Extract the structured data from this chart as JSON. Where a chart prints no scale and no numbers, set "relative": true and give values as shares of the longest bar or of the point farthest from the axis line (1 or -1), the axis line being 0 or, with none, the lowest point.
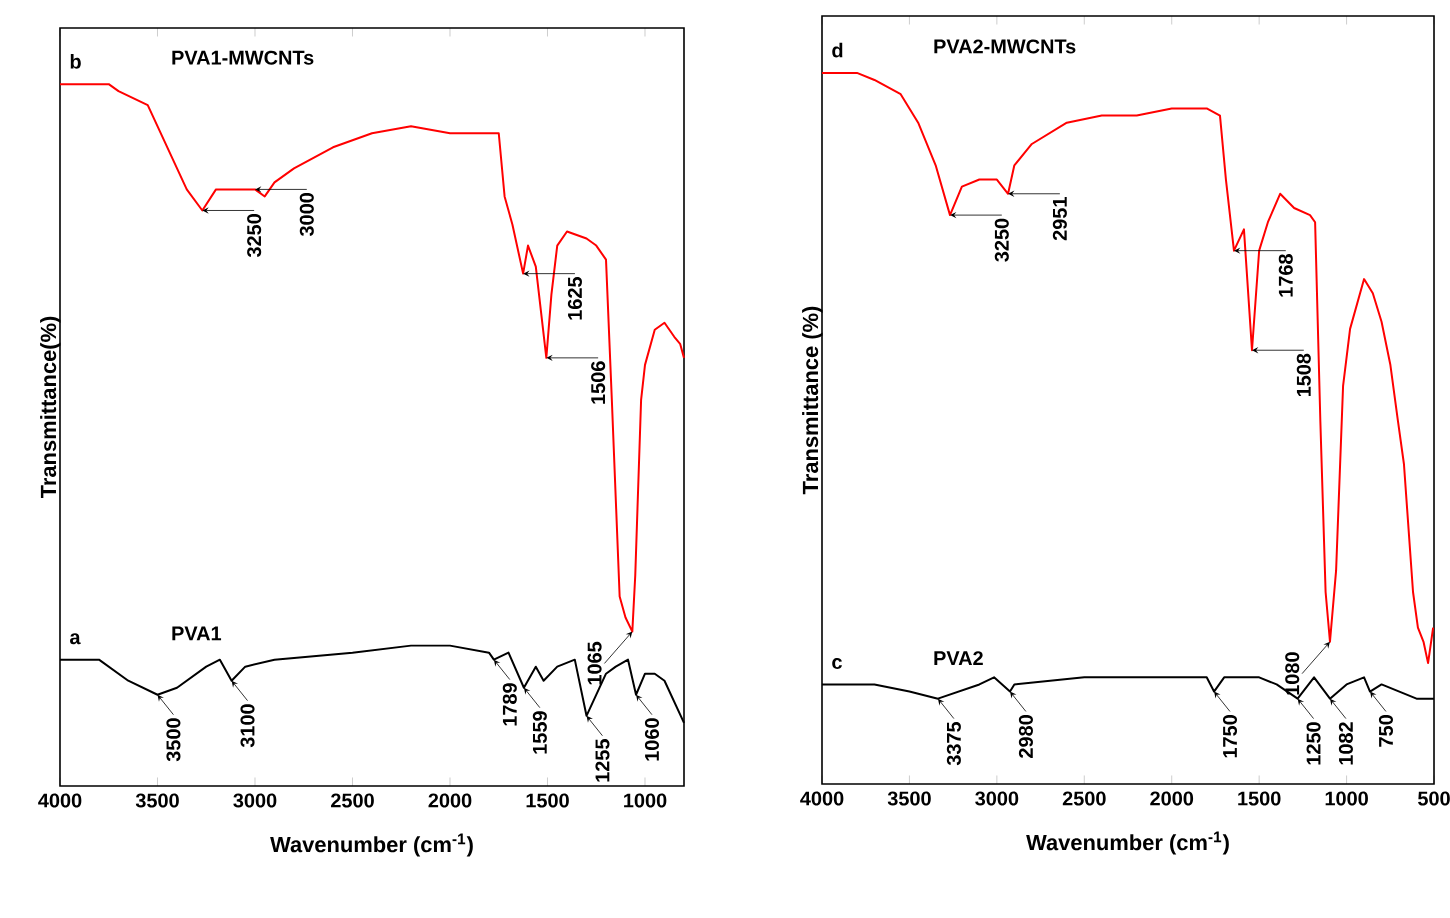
{
  "chart_data": [
    {
      "type": "line",
      "xlabel": "Wavenumber (cm$^{-1}$)",
      "ylabel": "Transmittance(%)",
      "relative": true,
      "xlim": [
        4000,
        800
      ],
      "xticks": [
        4000,
        3500,
        3000,
        2500,
        2000,
        1500,
        1000
      ],
      "series": [
        {
          "name": "PVA1-MWCNTs",
          "color": "#ff0000",
          "x": [
            4000,
            3750,
            3700,
            3550,
            3450,
            3350,
            3270,
            3200,
            3100,
            3000,
            2950,
            2900,
            2800,
            2600,
            2400,
            2200,
            2000,
            1800,
            1750,
            1720,
            1680,
            1625,
            1600,
            1560,
            1506,
            1480,
            1450,
            1400,
            1300,
            1250,
            1200,
            1170,
            1130,
            1100,
            1065,
            1050,
            1020,
            1000,
            950,
            900,
            850,
            820,
            800
          ],
          "values": [
            1.0,
            1.0,
            0.99,
            0.97,
            0.91,
            0.85,
            0.82,
            0.85,
            0.85,
            0.85,
            0.84,
            0.86,
            0.88,
            0.91,
            0.93,
            0.94,
            0.93,
            0.93,
            0.93,
            0.84,
            0.8,
            0.73,
            0.77,
            0.74,
            0.61,
            0.7,
            0.77,
            0.79,
            0.78,
            0.77,
            0.75,
            0.55,
            0.27,
            0.24,
            0.22,
            0.3,
            0.55,
            0.6,
            0.65,
            0.66,
            0.64,
            0.63,
            0.61
          ]
        },
        {
          "name": "PVA1",
          "color": "#000000",
          "x": [
            4000,
            3800,
            3650,
            3500,
            3400,
            3250,
            3180,
            3120,
            3050,
            2900,
            2500,
            2200,
            2000,
            1800,
            1775,
            1700,
            1621,
            1560,
            1520,
            1450,
            1360,
            1300,
            1200,
            1150,
            1087,
            1046,
            1000,
            950,
            900,
            850,
            800
          ],
          "values": [
            0.18,
            0.18,
            0.15,
            0.13,
            0.14,
            0.17,
            0.18,
            0.15,
            0.17,
            0.18,
            0.19,
            0.2,
            0.2,
            0.19,
            0.18,
            0.19,
            0.14,
            0.17,
            0.15,
            0.17,
            0.18,
            0.1,
            0.16,
            0.17,
            0.18,
            0.13,
            0.16,
            0.16,
            0.15,
            0.12,
            0.09
          ]
        }
      ],
      "annotations": [
        "b",
        "a",
        {
          "text": "3250",
          "x": 3270,
          "y": 0.82
        },
        {
          "text": "3000",
          "x": 3000,
          "y": 0.85
        },
        {
          "text": "1625",
          "x": 1625,
          "y": 0.73
        },
        {
          "text": "1506",
          "x": 1506,
          "y": 0.61
        },
        {
          "text": "1065",
          "x": 1065,
          "y": 0.22
        },
        {
          "text": "3500",
          "x": 3500,
          "y": 0.13
        },
        {
          "text": "3100",
          "x": 3120,
          "y": 0.15
        },
        {
          "text": "1789",
          "x": 1775,
          "y": 0.18
        },
        {
          "text": "1559",
          "x": 1621,
          "y": 0.14
        },
        {
          "text": "1255",
          "x": 1300,
          "y": 0.1
        },
        {
          "text": "1060",
          "x": 1046,
          "y": 0.13
        }
      ]
    },
    {
      "type": "line",
      "xlabel": "Wavenumber (cm$^{-1}$)",
      "ylabel": "Transmittance (%)",
      "relative": true,
      "xlim": [
        4000,
        500
      ],
      "xticks": [
        4000,
        3500,
        3000,
        2500,
        2000,
        1500,
        1000,
        500
      ],
      "series": [
        {
          "name": "PVA2-MWCNTs",
          "color": "#ff0000",
          "x": [
            4000,
            3800,
            3700,
            3550,
            3450,
            3350,
            3268,
            3200,
            3100,
            3000,
            2936,
            2900,
            2800,
            2600,
            2400,
            2200,
            2000,
            1800,
            1724,
            1690,
            1644,
            1587,
            1541,
            1500,
            1450,
            1380,
            1300,
            1209,
            1180,
            1150,
            1120,
            1095,
            1060,
            1020,
            980,
            900,
            850,
            800,
            750,
            706,
            672,
            620,
            592,
            560,
            534,
            505
          ],
          "values": [
            1.0,
            1.0,
            0.99,
            0.97,
            0.93,
            0.87,
            0.8,
            0.84,
            0.85,
            0.85,
            0.83,
            0.87,
            0.9,
            0.93,
            0.94,
            0.94,
            0.95,
            0.95,
            0.94,
            0.85,
            0.75,
            0.78,
            0.61,
            0.75,
            0.79,
            0.83,
            0.81,
            0.8,
            0.79,
            0.51,
            0.27,
            0.2,
            0.3,
            0.56,
            0.64,
            0.71,
            0.69,
            0.65,
            0.59,
            0.51,
            0.45,
            0.27,
            0.22,
            0.2,
            0.17,
            0.22
          ]
        },
        {
          "name": "PVA2",
          "color": "#000000",
          "x": [
            4000,
            3700,
            3500,
            3337,
            3100,
            3016,
            2925,
            2900,
            2500,
            2000,
            1800,
            1758,
            1700,
            1500,
            1400,
            1280,
            1186,
            1095,
            1000,
            900,
            866,
            800,
            700,
            600,
            500
          ],
          "values": [
            0.14,
            0.14,
            0.13,
            0.12,
            0.14,
            0.15,
            0.13,
            0.14,
            0.15,
            0.15,
            0.15,
            0.13,
            0.15,
            0.15,
            0.14,
            0.12,
            0.15,
            0.12,
            0.14,
            0.15,
            0.13,
            0.14,
            0.13,
            0.12,
            0.12
          ]
        }
      ],
      "annotations": [
        "d",
        "c",
        {
          "text": "3250",
          "x": 3268,
          "y": 0.8
        },
        {
          "text": "2951",
          "x": 2936,
          "y": 0.83
        },
        {
          "text": "1768",
          "x": 1644,
          "y": 0.75
        },
        {
          "text": "1508",
          "x": 1541,
          "y": 0.61
        },
        {
          "text": "1080",
          "x": 1095,
          "y": 0.2
        },
        {
          "text": "3375",
          "x": 3337,
          "y": 0.12
        },
        {
          "text": "2980",
          "x": 2925,
          "y": 0.13
        },
        {
          "text": "1750",
          "x": 1758,
          "y": 0.13
        },
        {
          "text": "1250",
          "x": 1280,
          "y": 0.12
        },
        {
          "text": "1082",
          "x": 1095,
          "y": 0.12
        },
        {
          "text": "750",
          "x": 866,
          "y": 0.13
        }
      ]
    }
  ]
}
